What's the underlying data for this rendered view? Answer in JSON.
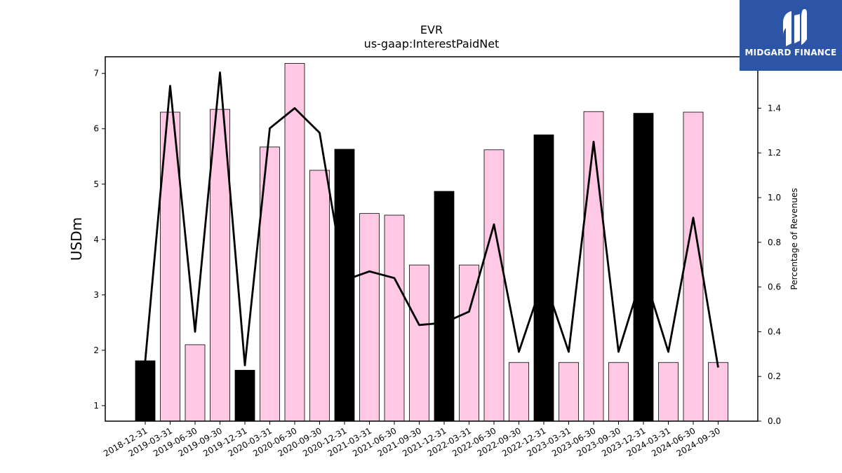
{
  "chart_data": {
    "type": "bar",
    "title": "EVR",
    "subtitle": "us-gaap:InterestPaidNet",
    "ylabel": "USDm",
    "ylabel_right": "Percentage of Revenues",
    "categories": [
      "2018-12-31",
      "2019-03-31",
      "2019-06-30",
      "2019-09-30",
      "2019-12-31",
      "2020-03-31",
      "2020-06-30",
      "2020-09-30",
      "2020-12-31",
      "2021-03-31",
      "2021-06-30",
      "2021-09-30",
      "2021-12-31",
      "2022-03-31",
      "2022-06-30",
      "2022-09-30",
      "2022-12-31",
      "2023-03-31",
      "2023-06-30",
      "2023-09-30",
      "2023-12-31",
      "2024-03-31",
      "2024-06-30",
      "2024-09-30"
    ],
    "series": [
      {
        "kind": "bar",
        "axis": "left",
        "values": [
          1.81,
          6.3,
          2.1,
          6.35,
          1.64,
          5.67,
          7.18,
          5.25,
          5.63,
          4.47,
          4.44,
          3.54,
          4.87,
          3.54,
          5.62,
          1.78,
          5.89,
          1.78,
          6.31,
          1.78,
          6.28,
          1.78,
          6.3,
          1.78
        ],
        "highlight": [
          true,
          false,
          false,
          false,
          true,
          false,
          false,
          false,
          true,
          false,
          false,
          false,
          true,
          false,
          false,
          false,
          true,
          false,
          false,
          false,
          true,
          false,
          false,
          false
        ],
        "color": "#ffc9e5",
        "highlight_color": "#000000"
      },
      {
        "kind": "line",
        "axis": "right",
        "values": [
          0.27,
          1.5,
          0.4,
          1.56,
          0.25,
          1.31,
          1.4,
          1.29,
          0.63,
          0.67,
          0.64,
          0.43,
          0.44,
          0.49,
          0.88,
          0.31,
          0.64,
          0.31,
          1.25,
          0.31,
          0.67,
          0.31,
          0.91,
          0.24
        ],
        "color": "#000000"
      }
    ],
    "ylim": [
      0.72,
      7.3
    ],
    "yticks": [
      1,
      2,
      3,
      4,
      5,
      6,
      7
    ],
    "ylim_right": [
      0,
      1.63
    ],
    "yticks_right": [
      "0.0",
      "0.2",
      "0.4",
      "0.6",
      "0.8",
      "1.0",
      "1.2",
      "1.4"
    ]
  },
  "logo": {
    "text": "MIDGARD FINANCE"
  }
}
